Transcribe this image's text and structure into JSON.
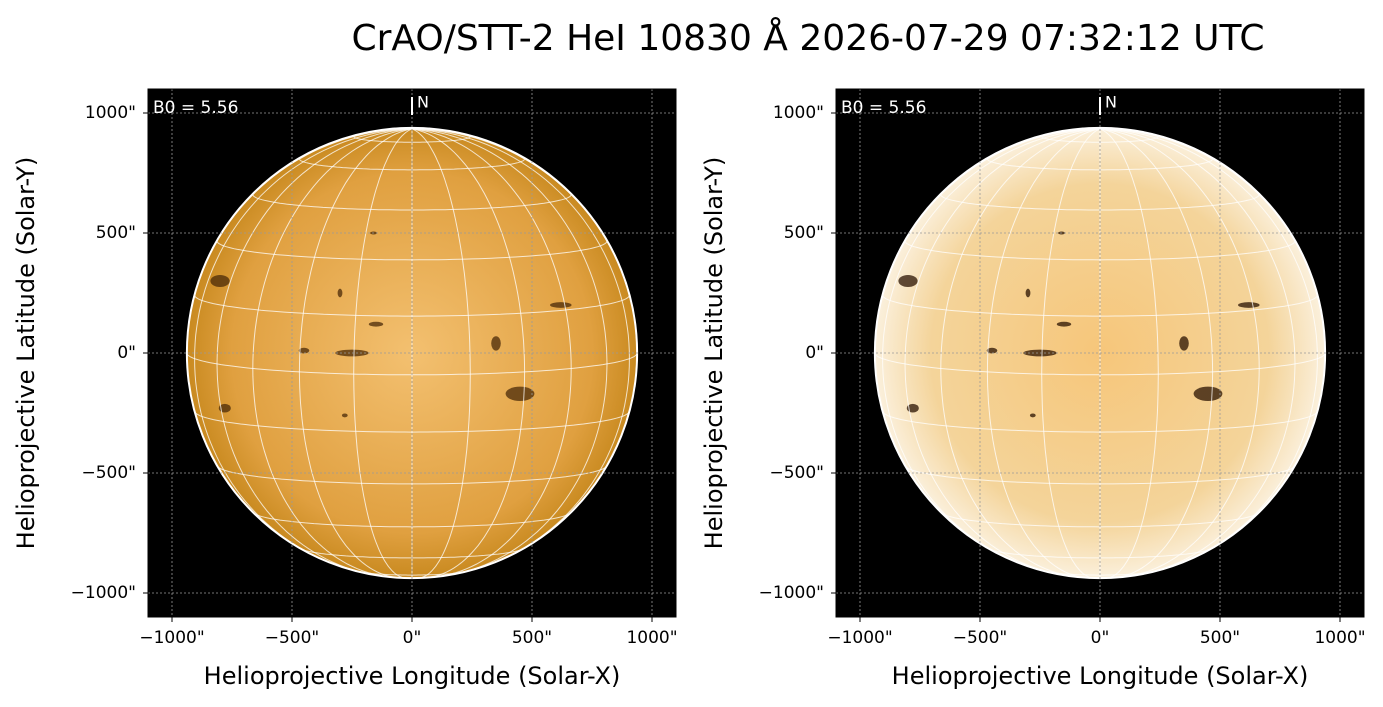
{
  "title": "CrAO/STT-2 HeI 10830 Å 2026-07-29 07:32:12 UTC",
  "chart_data": [
    {
      "type": "solar-image",
      "variant": "normal",
      "annotation": "B0 = 5.56",
      "b0": 5.56,
      "north_label": "N",
      "solar_radius": 938,
      "xlabel": "Helioprojective Longitude (Solar-X)",
      "ylabel": "Helioprojective Latitude (Solar-Y)",
      "xlim": [
        -1100,
        1100
      ],
      "ylim": [
        -1100,
        1100
      ],
      "xticks": [
        {
          "value": -1000,
          "label": "−1000\""
        },
        {
          "value": -500,
          "label": "−500\""
        },
        {
          "value": 0,
          "label": "0\""
        },
        {
          "value": 500,
          "label": "500\""
        },
        {
          "value": 1000,
          "label": "1000\""
        }
      ],
      "yticks": [
        {
          "value": -1000,
          "label": "−1000\""
        },
        {
          "value": -500,
          "label": "−500\""
        },
        {
          "value": 0,
          "label": "0\""
        },
        {
          "value": 500,
          "label": "500\""
        },
        {
          "value": 1000,
          "label": "1000\""
        }
      ],
      "grid": true
    },
    {
      "type": "solar-image",
      "variant": "enhanced",
      "annotation": "B0 = 5.56",
      "b0": 5.56,
      "north_label": "N",
      "solar_radius": 938,
      "xlabel": "Helioprojective Longitude (Solar-X)",
      "ylabel": "Helioprojective Latitude (Solar-Y)",
      "xlim": [
        -1100,
        1100
      ],
      "ylim": [
        -1100,
        1100
      ],
      "xticks": [
        {
          "value": -1000,
          "label": "−1000\""
        },
        {
          "value": -500,
          "label": "−500\""
        },
        {
          "value": 0,
          "label": "0\""
        },
        {
          "value": 500,
          "label": "500\""
        },
        {
          "value": 1000,
          "label": "1000\""
        }
      ],
      "yticks": [
        {
          "value": -1000,
          "label": "−1000\""
        },
        {
          "value": -500,
          "label": "−500\""
        },
        {
          "value": 0,
          "label": "0\""
        },
        {
          "value": 500,
          "label": "500\""
        },
        {
          "value": 1000,
          "label": "1000\""
        }
      ],
      "grid": true
    }
  ]
}
